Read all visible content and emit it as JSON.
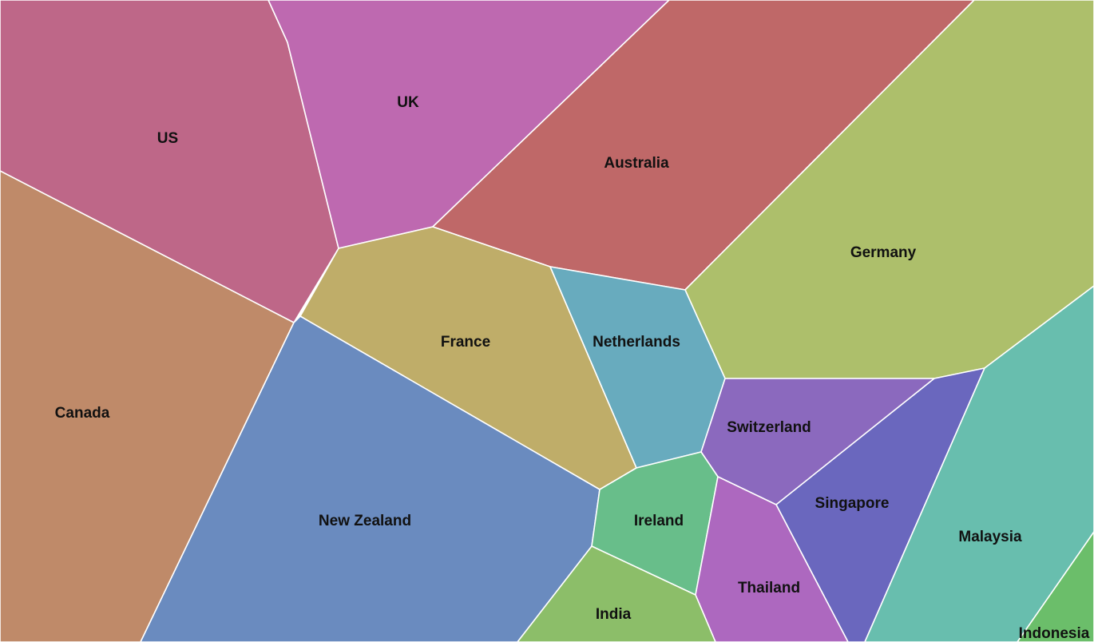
{
  "chart_data": {
    "type": "voronoi",
    "cells": [
      {
        "name": "US",
        "color": "#be6788"
      },
      {
        "name": "UK",
        "color": "#be69b0"
      },
      {
        "name": "Australia",
        "color": "#bf6868"
      },
      {
        "name": "Germany",
        "color": "#adbf6b"
      },
      {
        "name": "Canada",
        "color": "#bf8a69"
      },
      {
        "name": "France",
        "color": "#bfad69"
      },
      {
        "name": "Netherlands",
        "color": "#68abbe"
      },
      {
        "name": "New Zealand",
        "color": "#6a8bbf"
      },
      {
        "name": "Switzerland",
        "color": "#8b69be"
      },
      {
        "name": "Singapore",
        "color": "#6a67be"
      },
      {
        "name": "Malaysia",
        "color": "#68beae"
      },
      {
        "name": "Ireland",
        "color": "#68be8a"
      },
      {
        "name": "Thailand",
        "color": "#ad68bf"
      },
      {
        "name": "India",
        "color": "#8cbe69"
      },
      {
        "name": "Indonesia",
        "color": "#6bbe6a"
      }
    ]
  }
}
